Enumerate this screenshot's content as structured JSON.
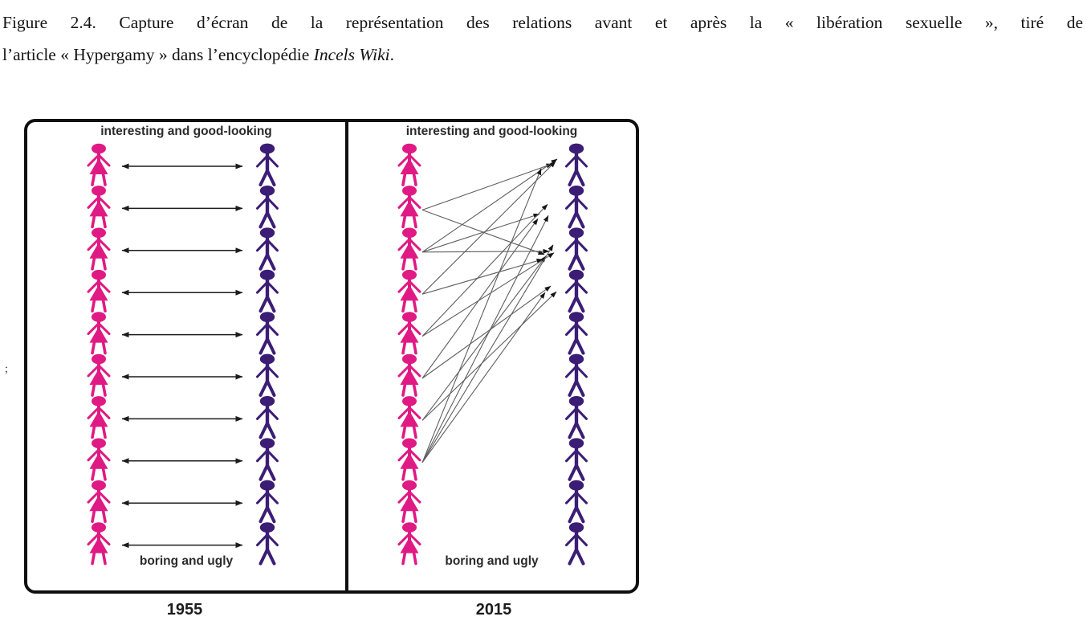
{
  "caption": {
    "line1": "Figure 2.4. Capture d’écran de la représentation des relations avant et après la « libération sexuelle », tiré de",
    "line2_plain": "l’article « Hypergamy » dans l’encyclopédie ",
    "line2_italic": "Incels Wiki",
    "line2_suffix": "."
  },
  "stray_mark": ";",
  "figure": {
    "panels": [
      {
        "year_label": "1955",
        "top_label": "interesting and good-looking",
        "bottom_label": "boring and ugly",
        "women_count": 10,
        "men_count": 10,
        "pairing": "one-to-one mutual relations",
        "arrow_style": "double-headed",
        "connections": [
          [
            1,
            1
          ],
          [
            2,
            2
          ],
          [
            3,
            3
          ],
          [
            4,
            4
          ],
          [
            5,
            5
          ],
          [
            6,
            6
          ],
          [
            7,
            7
          ],
          [
            8,
            8
          ],
          [
            9,
            9
          ],
          [
            10,
            10
          ]
        ]
      },
      {
        "year_label": "2015",
        "top_label": "interesting and good-looking",
        "bottom_label": "boring and ugly",
        "women_count": 10,
        "men_count": 10,
        "pairing": "many women to the top few men",
        "arrow_style": "single-headed",
        "connections": [
          [
            2,
            1
          ],
          [
            2,
            3
          ],
          [
            3,
            1
          ],
          [
            3,
            2
          ],
          [
            3,
            3
          ],
          [
            4,
            1
          ],
          [
            4,
            3
          ],
          [
            5,
            2
          ],
          [
            5,
            3
          ],
          [
            6,
            2
          ],
          [
            6,
            4
          ],
          [
            7,
            3
          ],
          [
            7,
            4
          ],
          [
            8,
            1
          ],
          [
            8,
            2
          ],
          [
            8,
            3
          ],
          [
            8,
            4
          ]
        ]
      }
    ],
    "colors": {
      "woman": "#e01a84",
      "man": "#3b1d75",
      "arrow": "#1c1c1c",
      "thin_arrow": "#5f5f5f",
      "frame": "#0f0f0f",
      "label": "#2b2b2b"
    }
  }
}
